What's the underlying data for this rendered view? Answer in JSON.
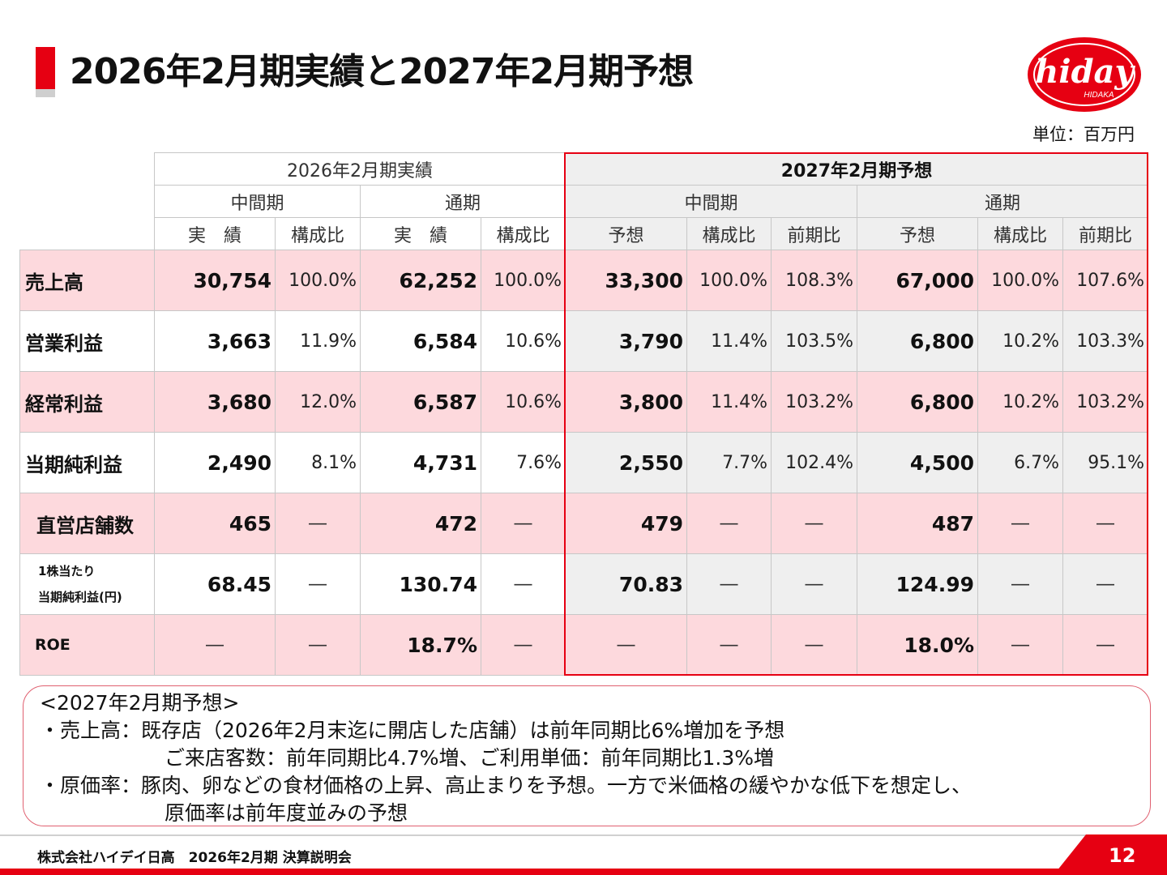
{
  "header": {
    "title": "2026年2月期実績と2027年2月期予想"
  },
  "logo": {
    "text": "hiday",
    "sub": "HIDAKA"
  },
  "unit": "単位：百万円",
  "table": {
    "period_actual": "2026年2月期実績",
    "period_forecast": "2027年2月期予想",
    "half": "中間期",
    "full": "通期",
    "col_actual": "実　績",
    "col_ratio": "構成比",
    "col_forecast": "予想",
    "col_yoy": "前期比",
    "dash": "―",
    "rows": [
      {
        "label": "売上高",
        "a1": "30,754",
        "r1": "100.0%",
        "a2": "62,252",
        "r2": "100.0%",
        "f1": "33,300",
        "fr1": "100.0%",
        "y1": "108.3%",
        "f2": "67,000",
        "fr2": "100.0%",
        "y2": "107.6%"
      },
      {
        "label": "営業利益",
        "a1": "3,663",
        "r1": "11.9%",
        "a2": "6,584",
        "r2": "10.6%",
        "f1": "3,790",
        "fr1": "11.4%",
        "y1": "103.5%",
        "f2": "6,800",
        "fr2": "10.2%",
        "y2": "103.3%"
      },
      {
        "label": "経常利益",
        "a1": "3,680",
        "r1": "12.0%",
        "a2": "6,587",
        "r2": "10.6%",
        "f1": "3,800",
        "fr1": "11.4%",
        "y1": "103.2%",
        "f2": "6,800",
        "fr2": "10.2%",
        "y2": "103.2%"
      },
      {
        "label": "当期純利益",
        "a1": "2,490",
        "r1": "8.1%",
        "a2": "4,731",
        "r2": "7.6%",
        "f1": "2,550",
        "fr1": "7.7%",
        "y1": "102.4%",
        "f2": "4,500",
        "fr2": "6.7%",
        "y2": "95.1%"
      },
      {
        "label": "直営店舗数",
        "a1": "465",
        "a2": "472",
        "f1": "479",
        "f2": "487"
      },
      {
        "label1": "1株当たり",
        "label2": "当期純利益(円)",
        "a1": "68.45",
        "a2": "130.74",
        "f1": "70.83",
        "f2": "124.99"
      },
      {
        "label": "ROE",
        "a2": "18.7%",
        "f2": "18.0%"
      }
    ]
  },
  "notes": {
    "heading": "<2027年2月期予想>",
    "line1": "・売上高：既存店（2026年2月末迄に開店した店舗）は前年同期比6%増加を予想",
    "line2": "ご来店客数：前年同期比4.7%増、ご利用単価：前年同期比1.3%増",
    "line3": "・原価率：豚肉、卵などの食材価格の上昇、高止まりを予想。一方で米価格の緩やかな低下を想定し、",
    "line4": "原価率は前年度並みの予想"
  },
  "footer": {
    "company": "株式会社ハイデイ日高　2026年2月期  決算説明会",
    "page": "12"
  },
  "colors": {
    "accent": "#e60012",
    "row_pink": "#fdd9dd",
    "forecast_gray": "#efefef"
  }
}
